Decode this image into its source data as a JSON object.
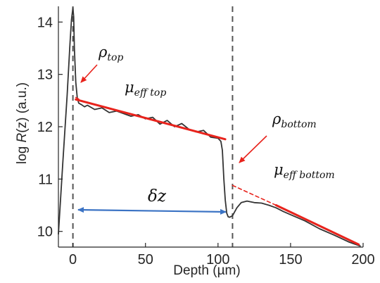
{
  "chart_data": {
    "type": "line",
    "xlabel": "Depth (µm)",
    "ylabel_prefix": "log ",
    "ylabel_var": "R",
    "ylabel_suffix": "(z) (a.u.)",
    "xlim": [
      -10,
      200
    ],
    "ylim": [
      9.7,
      14.3
    ],
    "xticks": [
      0,
      50,
      100,
      150,
      200
    ],
    "yticks": [
      10,
      11,
      12,
      13,
      14
    ],
    "grid": false,
    "colors": {
      "signal": "#333333",
      "fit": "#e8231c",
      "arrow_red": "#e8231c",
      "arrow_blue": "#3b73c4",
      "boundary": "#555555",
      "axis": "#262626"
    },
    "series": [
      {
        "style": "signal",
        "x": [
          -10,
          -7,
          -4,
          -2,
          -1,
          0,
          0.5,
          1,
          2,
          3,
          4,
          6,
          8,
          10,
          15,
          20,
          25,
          30,
          35,
          40,
          45,
          50,
          55,
          60,
          65,
          70,
          75,
          80,
          85,
          90,
          95,
          100,
          102,
          103,
          104,
          105,
          106,
          107,
          108,
          110,
          113,
          116,
          120,
          125,
          130,
          135,
          140,
          145,
          150,
          160,
          170,
          180,
          190,
          195,
          198
        ],
        "y": [
          9.95,
          11.3,
          12.6,
          13.6,
          14.05,
          14.27,
          14.1,
          13.5,
          12.85,
          12.55,
          12.45,
          12.42,
          12.38,
          12.41,
          12.33,
          12.36,
          12.27,
          12.3,
          12.25,
          12.2,
          12.23,
          12.15,
          12.18,
          12.05,
          12.12,
          12.0,
          12.06,
          11.95,
          11.9,
          11.93,
          11.8,
          11.78,
          11.72,
          11.55,
          11.0,
          10.6,
          10.35,
          10.28,
          10.27,
          10.3,
          10.45,
          10.55,
          10.58,
          10.55,
          10.54,
          10.5,
          10.45,
          10.38,
          10.32,
          10.2,
          10.05,
          9.93,
          9.8,
          9.75,
          9.72
        ]
      },
      {
        "style": "fit",
        "x": [
          2,
          105
        ],
        "y": [
          12.52,
          11.76
        ]
      },
      {
        "style": "fit-dashed",
        "x": [
          2,
          8
        ],
        "y": [
          12.56,
          12.47
        ]
      },
      {
        "style": "fit",
        "x": [
          140,
          197
        ],
        "y": [
          10.5,
          9.75
        ]
      },
      {
        "style": "fit-dashed",
        "x": [
          110,
          140
        ],
        "y": [
          10.88,
          10.5
        ]
      }
    ],
    "boundaries": [
      0,
      110
    ],
    "annotations": [
      {
        "base": "ρ",
        "sub": "top"
      },
      {
        "base": "μ",
        "sub": "eff top"
      },
      {
        "base": "ρ",
        "sub": "bottom"
      },
      {
        "base": "μ",
        "sub": "eff bottom"
      },
      {
        "base": "δz",
        "sub": ""
      }
    ]
  }
}
